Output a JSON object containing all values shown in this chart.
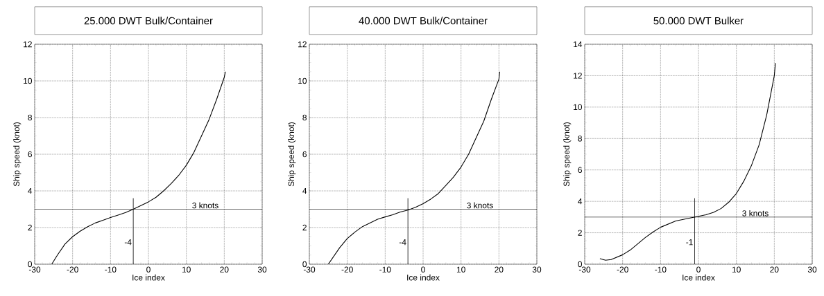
{
  "chart_data": [
    {
      "type": "line",
      "title": "25.000 DWT Bulk/Container",
      "xlabel": "Ice index",
      "ylabel": "Ship speed (knot)",
      "color": "#000000",
      "grid": true,
      "line_style": "solid",
      "x": [
        -25.5,
        -24,
        -22,
        -20,
        -18,
        -16,
        -14,
        -12,
        -10,
        -8,
        -6,
        -4,
        -2,
        0,
        2,
        4,
        6,
        8,
        10,
        12,
        14,
        16,
        18,
        20,
        20.3
      ],
      "values": [
        0,
        0.5,
        1.1,
        1.5,
        1.8,
        2.05,
        2.25,
        2.4,
        2.55,
        2.68,
        2.82,
        3.0,
        3.2,
        3.4,
        3.65,
        4.0,
        4.4,
        4.85,
        5.4,
        6.1,
        7.0,
        7.9,
        9.0,
        10.2,
        10.5
      ],
      "xlim": [
        -30,
        30
      ],
      "ylim": [
        0,
        12
      ],
      "xticks": [
        -30,
        -20,
        -10,
        0,
        10,
        20,
        30
      ],
      "yticks": [
        0,
        2,
        4,
        6,
        8,
        10,
        12
      ],
      "ref_lines": [
        {
          "axis": "y",
          "value": 3,
          "label": "3 knots"
        },
        {
          "axis": "x",
          "value": -4,
          "label": "-4"
        }
      ]
    },
    {
      "type": "line",
      "title": "40.000 DWT Bulk/Container",
      "xlabel": "Ice index",
      "ylabel": "Ship speed (knot)",
      "color": "#000000",
      "grid": true,
      "line_style": "solid",
      "x": [
        -25,
        -22,
        -20,
        -18,
        -16,
        -14,
        -12,
        -10,
        -8,
        -6,
        -4,
        -2,
        0,
        2,
        4,
        6,
        8,
        10,
        12,
        14,
        16,
        18,
        20,
        20.2
      ],
      "values": [
        0,
        0.9,
        1.4,
        1.75,
        2.05,
        2.25,
        2.45,
        2.58,
        2.7,
        2.85,
        2.95,
        3.1,
        3.3,
        3.55,
        3.85,
        4.3,
        4.75,
        5.3,
        6.0,
        6.9,
        7.8,
        9.0,
        10.1,
        10.5
      ],
      "xlim": [
        -30,
        30
      ],
      "ylim": [
        0,
        12
      ],
      "xticks": [
        -30,
        -20,
        -10,
        0,
        10,
        20,
        30
      ],
      "yticks": [
        0,
        2,
        4,
        6,
        8,
        10,
        12
      ],
      "ref_lines": [
        {
          "axis": "y",
          "value": 3,
          "label": "3 knots"
        },
        {
          "axis": "x",
          "value": -4,
          "label": "-4"
        }
      ]
    },
    {
      "type": "line",
      "title": "50.000 DWT Bulker",
      "xlabel": "Ice index",
      "ylabel": "Ship speed (knot)",
      "color": "#000000",
      "grid": true,
      "line_style": "solid",
      "x": [
        -26,
        -24.5,
        -23,
        -20,
        -18,
        -16,
        -14,
        -12,
        -10,
        -8,
        -6,
        -4,
        -2,
        0,
        2,
        4,
        6,
        8,
        10,
        12,
        14,
        16,
        18,
        20,
        20.3
      ],
      "values": [
        0.35,
        0.25,
        0.3,
        0.6,
        0.9,
        1.3,
        1.7,
        2.05,
        2.35,
        2.55,
        2.75,
        2.85,
        2.95,
        3.05,
        3.15,
        3.3,
        3.55,
        3.95,
        4.5,
        5.3,
        6.3,
        7.6,
        9.5,
        12.0,
        12.8
      ],
      "xlim": [
        -30,
        30
      ],
      "ylim": [
        0,
        14
      ],
      "xticks": [
        -30,
        -20,
        -10,
        0,
        10,
        20,
        30
      ],
      "yticks": [
        0,
        2,
        4,
        6,
        8,
        10,
        12,
        14
      ],
      "ref_lines": [
        {
          "axis": "y",
          "value": 3,
          "label": "3 knots"
        },
        {
          "axis": "x",
          "value": -1,
          "label": "-1"
        }
      ]
    }
  ]
}
